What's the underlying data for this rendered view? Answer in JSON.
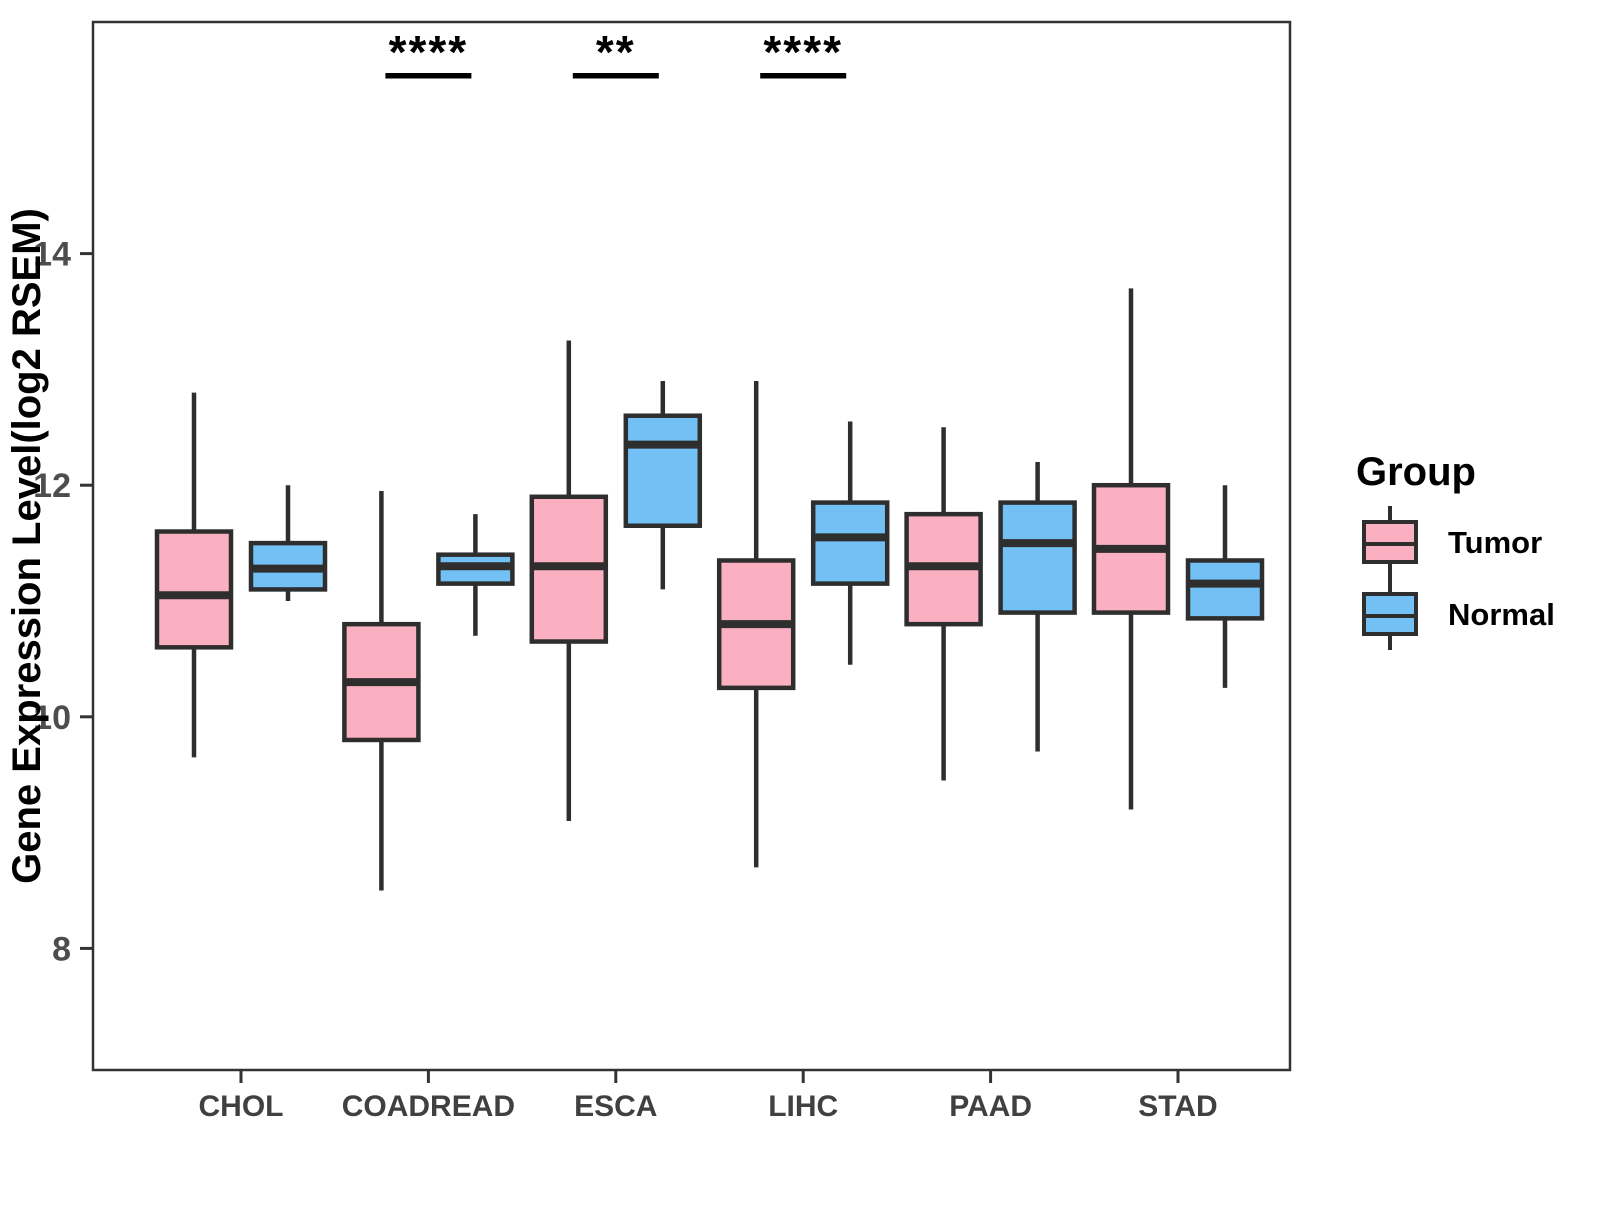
{
  "chart_data": {
    "type": "boxplot",
    "title": "",
    "xlabel": "",
    "ylabel": "Gene Expression Level(log2 RSEM)",
    "categories": [
      "CHOL",
      "COADREAD",
      "ESCA",
      "LIHC",
      "PAAD",
      "STAD"
    ],
    "ylim": [
      6.95,
      16.0
    ],
    "yticks": [
      8,
      10,
      12,
      14
    ],
    "grid": false,
    "panel_border": true,
    "legend": {
      "title": "Group",
      "position": "right",
      "entries": [
        {
          "label": "Tumor",
          "color_key": "tumor"
        },
        {
          "label": "Normal",
          "color_key": "normal"
        }
      ]
    },
    "colors": {
      "tumor": "#FBB0C2",
      "normal": "#73C0F5",
      "box_stroke": "#2E2E2E",
      "axis": "#333333",
      "tick_label": "#4D4D4D",
      "text": "#000000"
    },
    "series": [
      {
        "name": "Tumor",
        "color_key": "tumor",
        "boxes": [
          {
            "category": "CHOL",
            "min": 9.65,
            "q1": 10.6,
            "median": 11.05,
            "q3": 11.6,
            "max": 12.8
          },
          {
            "category": "COADREAD",
            "min": 8.5,
            "q1": 9.8,
            "median": 10.3,
            "q3": 10.8,
            "max": 11.95
          },
          {
            "category": "ESCA",
            "min": 9.1,
            "q1": 10.65,
            "median": 11.3,
            "q3": 11.9,
            "max": 13.25
          },
          {
            "category": "LIHC",
            "min": 8.7,
            "q1": 10.25,
            "median": 10.8,
            "q3": 11.35,
            "max": 12.9
          },
          {
            "category": "PAAD",
            "min": 9.45,
            "q1": 10.8,
            "median": 11.3,
            "q3": 11.75,
            "max": 12.5
          },
          {
            "category": "STAD",
            "min": 9.2,
            "q1": 10.9,
            "median": 11.45,
            "q3": 12.0,
            "max": 13.7
          }
        ]
      },
      {
        "name": "Normal",
        "color_key": "normal",
        "boxes": [
          {
            "category": "CHOL",
            "min": 11.0,
            "q1": 11.1,
            "median": 11.28,
            "q3": 11.5,
            "max": 12.0
          },
          {
            "category": "COADREAD",
            "min": 10.7,
            "q1": 11.15,
            "median": 11.3,
            "q3": 11.4,
            "max": 11.75
          },
          {
            "category": "ESCA",
            "min": 11.1,
            "q1": 11.65,
            "median": 12.35,
            "q3": 12.6,
            "max": 12.9
          },
          {
            "category": "LIHC",
            "min": 10.45,
            "q1": 11.15,
            "median": 11.55,
            "q3": 11.85,
            "max": 12.55
          },
          {
            "category": "PAAD",
            "min": 9.7,
            "q1": 10.9,
            "median": 11.5,
            "q3": 11.85,
            "max": 12.2
          },
          {
            "category": "STAD",
            "min": 10.25,
            "q1": 10.85,
            "median": 11.15,
            "q3": 11.35,
            "max": 12.0
          }
        ]
      }
    ],
    "significance": [
      {
        "category": "COADREAD",
        "label": "****"
      },
      {
        "category": "ESCA",
        "label": "**"
      },
      {
        "category": "LIHC",
        "label": "****"
      }
    ]
  }
}
